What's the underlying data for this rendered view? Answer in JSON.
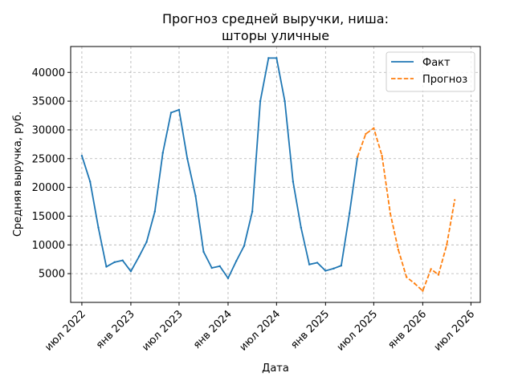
{
  "chart_data": {
    "type": "line",
    "title_line1": "Прогноз средней выручки, ниша:",
    "title_line2": "шторы уличные",
    "xlabel": "Дата",
    "ylabel": "Средняя выручка, руб.",
    "grid": true,
    "legend_position": "top-right",
    "xlim": [
      "2022-05-20",
      "2026-08-05"
    ],
    "ylim": [
      0,
      44500
    ],
    "x_ticks": [
      {
        "date": "2022-07-01",
        "label": "июл 2022"
      },
      {
        "date": "2023-01-01",
        "label": "янв 2023"
      },
      {
        "date": "2023-07-01",
        "label": "июл 2023"
      },
      {
        "date": "2024-01-01",
        "label": "янв 2024"
      },
      {
        "date": "2024-07-01",
        "label": "июл 2024"
      },
      {
        "date": "2025-01-01",
        "label": "янв 2025"
      },
      {
        "date": "2025-07-01",
        "label": "июл 2025"
      },
      {
        "date": "2026-01-01",
        "label": "янв 2026"
      },
      {
        "date": "2026-07-01",
        "label": "июл 2026"
      }
    ],
    "y_ticks": [
      5000,
      10000,
      15000,
      20000,
      25000,
      30000,
      35000,
      40000
    ],
    "series": [
      {
        "name": "Факт",
        "color": "#1f77b4",
        "style": "solid",
        "points": [
          [
            "2022-07-01",
            25500
          ],
          [
            "2022-08-01",
            21000
          ],
          [
            "2022-09-01",
            13000
          ],
          [
            "2022-10-01",
            6200
          ],
          [
            "2022-11-01",
            7000
          ],
          [
            "2022-12-01",
            7300
          ],
          [
            "2023-01-01",
            5400
          ],
          [
            "2023-02-01",
            8000
          ],
          [
            "2023-03-01",
            10500
          ],
          [
            "2023-04-01",
            15800
          ],
          [
            "2023-05-01",
            26000
          ],
          [
            "2023-06-01",
            33000
          ],
          [
            "2023-07-01",
            33500
          ],
          [
            "2023-08-01",
            25000
          ],
          [
            "2023-09-01",
            18500
          ],
          [
            "2023-10-01",
            8800
          ],
          [
            "2023-11-01",
            6000
          ],
          [
            "2023-12-01",
            6300
          ],
          [
            "2024-01-01",
            4200
          ],
          [
            "2024-02-01",
            7200
          ],
          [
            "2024-03-01",
            9800
          ],
          [
            "2024-04-01",
            15800
          ],
          [
            "2024-05-01",
            35000
          ],
          [
            "2024-06-01",
            42500
          ],
          [
            "2024-07-01",
            42500
          ],
          [
            "2024-08-01",
            35000
          ],
          [
            "2024-09-01",
            21000
          ],
          [
            "2024-10-01",
            13000
          ],
          [
            "2024-11-01",
            6600
          ],
          [
            "2024-12-01",
            6900
          ],
          [
            "2025-01-01",
            5500
          ],
          [
            "2025-02-01",
            5900
          ],
          [
            "2025-03-01",
            6400
          ],
          [
            "2025-04-01",
            15500
          ],
          [
            "2025-05-01",
            25300
          ]
        ]
      },
      {
        "name": "Прогноз",
        "color": "#ff7f0e",
        "style": "dashed",
        "points": [
          [
            "2025-05-01",
            25300
          ],
          [
            "2025-06-01",
            29300
          ],
          [
            "2025-07-01",
            30300
          ],
          [
            "2025-08-01",
            25500
          ],
          [
            "2025-09-01",
            15500
          ],
          [
            "2025-10-01",
            9200
          ],
          [
            "2025-11-01",
            4400
          ],
          [
            "2025-12-01",
            3300
          ],
          [
            "2026-01-01",
            2000
          ],
          [
            "2026-02-01",
            5800
          ],
          [
            "2026-03-01",
            4800
          ],
          [
            "2026-04-01",
            10000
          ],
          [
            "2026-05-01",
            17800
          ]
        ]
      }
    ]
  }
}
